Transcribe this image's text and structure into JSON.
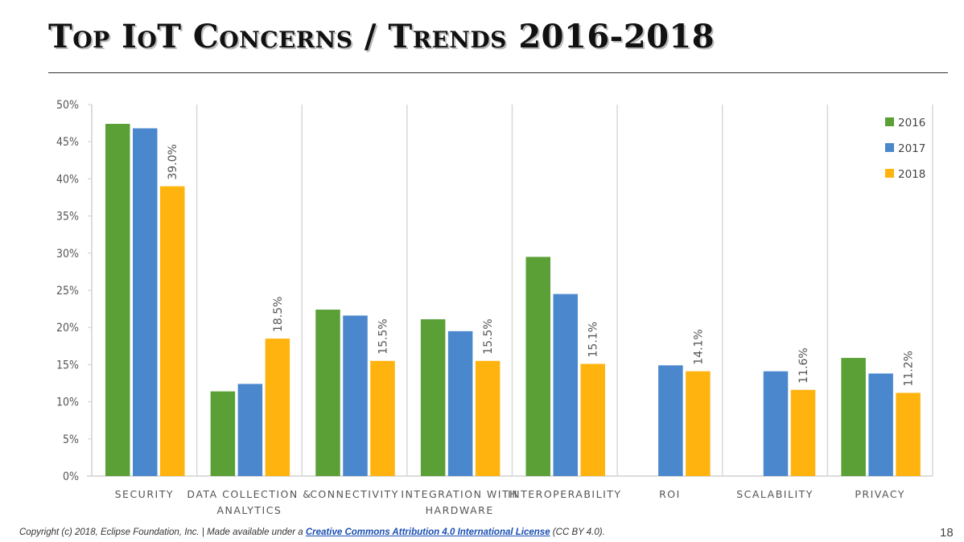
{
  "title": "Top IoT Concerns / Trends 2016-2018",
  "chart_data": {
    "type": "bar",
    "categories": [
      "SECURITY",
      "DATA COLLECTION & ANALYTICS",
      "CONNECTIVITY",
      "INTEGRATION WITH HARDWARE",
      "INTEROPERABILITY",
      "ROI",
      "SCALABILITY",
      "PRIVACY"
    ],
    "category_lines": [
      [
        "SECURITY"
      ],
      [
        "DATA COLLECTION &",
        "ANALYTICS"
      ],
      [
        "CONNECTIVITY"
      ],
      [
        "INTEGRATION WITH",
        "HARDWARE"
      ],
      [
        "INTEROPERABILITY"
      ],
      [
        "ROI"
      ],
      [
        "SCALABILITY"
      ],
      [
        "PRIVACY"
      ]
    ],
    "series": [
      {
        "name": "2016",
        "color": "#5ba037",
        "values": [
          47.4,
          11.4,
          22.4,
          21.1,
          29.5,
          null,
          null,
          15.9
        ]
      },
      {
        "name": "2017",
        "color": "#4a87cc",
        "values": [
          46.8,
          12.4,
          21.6,
          19.5,
          24.5,
          14.9,
          14.1,
          13.8
        ]
      },
      {
        "name": "2018",
        "color": "#ffb30f",
        "values": [
          39.0,
          18.5,
          15.5,
          15.5,
          15.1,
          14.1,
          11.6,
          11.2
        ]
      }
    ],
    "data_labels": [
      "39.0%",
      "18.5%",
      "15.5%",
      "15.5%",
      "15.1%",
      "14.1%",
      "11.6%",
      "11.2%"
    ],
    "y_ticks": [
      "0%",
      "5%",
      "10%",
      "15%",
      "20%",
      "25%",
      "30%",
      "35%",
      "40%",
      "45%",
      "50%"
    ],
    "ylim": [
      0,
      50
    ],
    "grid": "vertical category separators",
    "legend": "top-right"
  },
  "footer": {
    "text_before": "Copyright (c) 2018, Eclipse Foundation, Inc. | Made available under a ",
    "link": "Creative Commons Attribution 4.0 International License",
    "text_after": " (CC BY 4.0)."
  },
  "page_number": "18"
}
